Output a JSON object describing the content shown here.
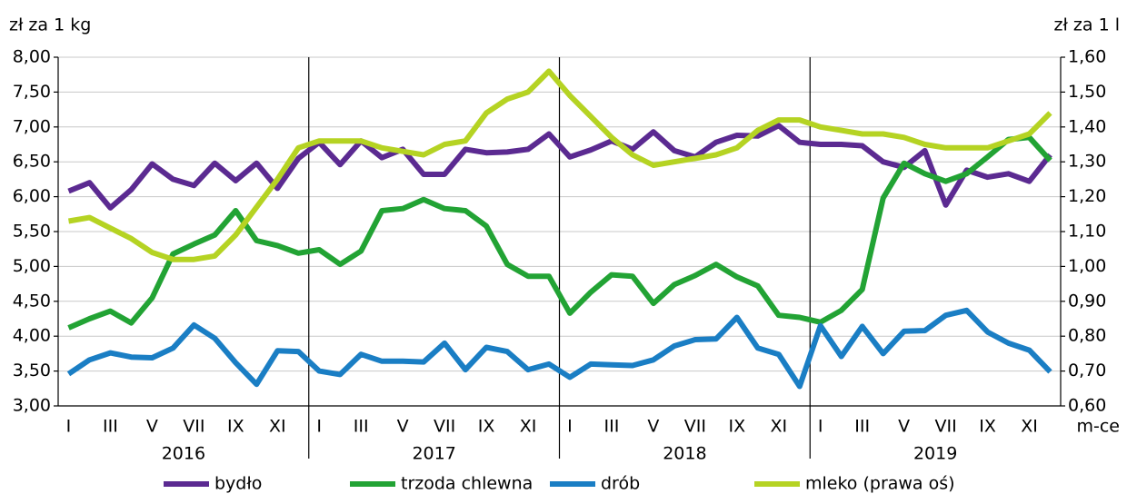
{
  "chart_data": {
    "type": "line",
    "y_axis_label": "zł za 1 kg",
    "y2_axis_label": "zł za 1 l",
    "x_axis_label": "m-ce",
    "categories": [
      "I",
      null,
      "III",
      null,
      "V",
      null,
      "VII",
      null,
      "IX",
      null,
      "XI",
      null,
      "I",
      null,
      "III",
      null,
      "V",
      null,
      "VII",
      null,
      "IX",
      null,
      "XI",
      null,
      "I",
      null,
      "III",
      null,
      "V",
      null,
      "VII",
      null,
      "IX",
      null,
      "XI",
      null,
      "I",
      null,
      "III",
      null,
      "V",
      null,
      "VII",
      null,
      "IX",
      null,
      "XI",
      null
    ],
    "years": [
      "2016",
      "2017",
      "2018",
      "2019"
    ],
    "ylim": [
      3,
      8
    ],
    "yticks": [
      {
        "value": 3,
        "label": "3,00"
      },
      {
        "value": 3.5,
        "label": "3,50"
      },
      {
        "value": 4,
        "label": "4,00"
      },
      {
        "value": 4.5,
        "label": "4,50"
      },
      {
        "value": 5,
        "label": "5,00"
      },
      {
        "value": 5.5,
        "label": "5,50"
      },
      {
        "value": 6,
        "label": "6,00"
      },
      {
        "value": 6.5,
        "label": "6,50"
      },
      {
        "value": 7,
        "label": "7,00"
      },
      {
        "value": 7.5,
        "label": "7,50"
      },
      {
        "value": 8,
        "label": "8,00"
      }
    ],
    "y2lim": [
      0.6,
      1.6
    ],
    "y2ticks": [
      {
        "value": 0.6,
        "label": "0,60"
      },
      {
        "value": 0.7,
        "label": "0,70"
      },
      {
        "value": 0.8,
        "label": "0,80"
      },
      {
        "value": 0.9,
        "label": "0,90"
      },
      {
        "value": 1.0,
        "label": "1,00"
      },
      {
        "value": 1.1,
        "label": "1,10"
      },
      {
        "value": 1.2,
        "label": "1,20"
      },
      {
        "value": 1.3,
        "label": "1,30"
      },
      {
        "value": 1.4,
        "label": "1,40"
      },
      {
        "value": 1.5,
        "label": "1,50"
      },
      {
        "value": 1.6,
        "label": "1,60"
      }
    ],
    "grid": true,
    "legend": "bottom",
    "series": [
      {
        "name": "bydło",
        "color": "#5b2a91",
        "values": [
          6.08,
          6.2,
          5.84,
          6.1,
          6.47,
          6.25,
          6.16,
          6.48,
          6.23,
          6.48,
          6.12,
          6.55,
          6.78,
          6.46,
          6.8,
          6.56,
          6.68,
          6.32,
          6.32,
          6.68,
          6.63,
          6.64,
          6.68,
          6.9,
          6.57,
          6.67,
          6.8,
          6.68,
          6.93,
          6.66,
          6.57,
          6.78,
          6.88,
          6.87,
          7.02,
          6.78,
          6.75,
          6.75,
          6.73,
          6.5,
          6.42,
          6.66,
          5.88,
          6.38,
          6.28,
          6.33,
          6.22,
          6.6
        ]
      },
      {
        "name": "trzoda chlewna",
        "color": "#22a334",
        "values": [
          4.12,
          4.25,
          4.36,
          4.19,
          4.55,
          5.18,
          5.32,
          5.45,
          5.8,
          5.37,
          5.3,
          5.19,
          5.24,
          5.03,
          5.22,
          5.8,
          5.83,
          5.96,
          5.83,
          5.8,
          5.58,
          5.03,
          4.86,
          4.86,
          4.33,
          4.63,
          4.88,
          4.86,
          4.47,
          4.74,
          4.87,
          5.03,
          4.85,
          4.72,
          4.3,
          4.27,
          4.2,
          4.37,
          4.67,
          5.98,
          6.48,
          6.33,
          6.22,
          6.33,
          6.57,
          6.82,
          6.85,
          6.52
        ]
      },
      {
        "name": "drób",
        "color": "#1a7ec4",
        "values": [
          3.46,
          3.66,
          3.76,
          3.7,
          3.69,
          3.83,
          4.16,
          3.97,
          3.62,
          3.31,
          3.79,
          3.78,
          3.5,
          3.45,
          3.74,
          3.64,
          3.64,
          3.63,
          3.9,
          3.52,
          3.84,
          3.78,
          3.52,
          3.6,
          3.41,
          3.6,
          3.59,
          3.58,
          3.66,
          3.86,
          3.95,
          3.96,
          4.27,
          3.83,
          3.74,
          3.28,
          4.15,
          3.71,
          4.14,
          3.75,
          4.07,
          4.08,
          4.3,
          4.37,
          4.06,
          3.9,
          3.8,
          3.49
        ]
      },
      {
        "name": "mleko (prawa oś)",
        "color": "#b5d323",
        "axis": "y2",
        "values": [
          1.13,
          1.14,
          1.11,
          1.08,
          1.04,
          1.02,
          1.02,
          1.03,
          1.09,
          1.17,
          1.25,
          1.34,
          1.36,
          1.36,
          1.36,
          1.34,
          1.33,
          1.32,
          1.35,
          1.36,
          1.44,
          1.48,
          1.5,
          1.56,
          1.49,
          1.43,
          1.37,
          1.32,
          1.29,
          1.3,
          1.31,
          1.32,
          1.34,
          1.39,
          1.42,
          1.42,
          1.4,
          1.39,
          1.38,
          1.38,
          1.37,
          1.35,
          1.34,
          1.34,
          1.34,
          1.36,
          1.38,
          1.44
        ]
      }
    ]
  }
}
